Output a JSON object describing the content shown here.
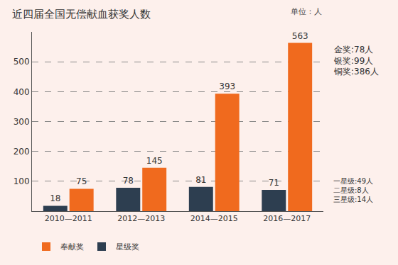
{
  "chart_data": {
    "type": "bar",
    "title": "近四届全国无偿献血获奖人数",
    "subtitle": "单位：人",
    "categories": [
      "2010—2011",
      "2012—2013",
      "2014—2015",
      "2016—2017"
    ],
    "series": [
      {
        "name": "星级奖",
        "color": "#2d3e50",
        "values": [
          18,
          78,
          81,
          71
        ]
      },
      {
        "name": "奉献奖",
        "color": "#f06a1e",
        "values": [
          75,
          145,
          393,
          563
        ]
      }
    ],
    "ylim": [
      0,
      600
    ],
    "yticks": [
      100,
      200,
      300,
      400,
      500
    ],
    "grid": true,
    "legend": "bottom left",
    "data_labels": true,
    "annotations": [
      {
        "category": "2016—2017",
        "series": "奉献奖",
        "lines": [
          "金奖:78人",
          "银奖:99人",
          "铜奖:386人"
        ]
      },
      {
        "category": "2016—2017",
        "series": "星级奖",
        "lines": [
          "一星级:49人",
          "二星级:8人",
          "三星级:14人"
        ]
      }
    ]
  }
}
